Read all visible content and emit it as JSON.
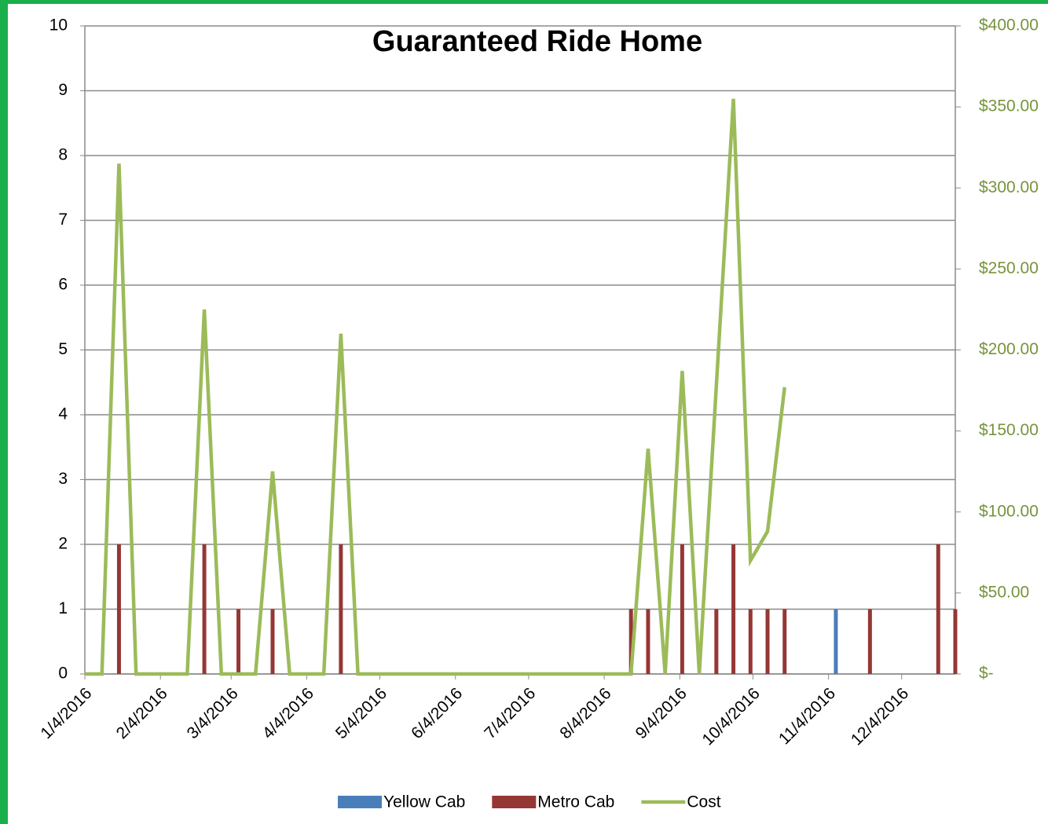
{
  "chart_data": {
    "type": "bar-line",
    "title": "Guaranteed Ride Home",
    "x": [
      "1/4/2016",
      "1/11/2016",
      "1/18/2016",
      "1/25/2016",
      "2/1/2016",
      "2/8/2016",
      "2/15/2016",
      "2/22/2016",
      "2/29/2016",
      "3/7/2016",
      "3/14/2016",
      "3/21/2016",
      "3/28/2016",
      "4/4/2016",
      "4/11/2016",
      "4/18/2016",
      "4/25/2016",
      "5/2/2016",
      "5/9/2016",
      "5/16/2016",
      "5/23/2016",
      "5/30/2016",
      "6/6/2016",
      "6/13/2016",
      "6/20/2016",
      "6/27/2016",
      "7/4/2016",
      "7/11/2016",
      "7/18/2016",
      "7/25/2016",
      "8/1/2016",
      "8/8/2016",
      "8/15/2016",
      "8/22/2016",
      "8/29/2016",
      "9/5/2016",
      "9/12/2016",
      "9/19/2016",
      "9/26/2016",
      "10/3/2016",
      "10/10/2016",
      "10/17/2016",
      "10/24/2016",
      "10/31/2016",
      "11/7/2016",
      "11/14/2016",
      "11/21/2016",
      "11/28/2016",
      "12/5/2016",
      "12/12/2016",
      "12/19/2016",
      "12/26/2016"
    ],
    "series": [
      {
        "name": "Yellow Cab",
        "type": "bar",
        "color": "#4a7ebb",
        "values": [
          0,
          0,
          0,
          0,
          0,
          0,
          0,
          0,
          0,
          0,
          0,
          0,
          0,
          0,
          0,
          0,
          0,
          0,
          0,
          0,
          0,
          0,
          0,
          0,
          0,
          0,
          0,
          0,
          0,
          0,
          0,
          0,
          0,
          0,
          0,
          0,
          0,
          0,
          0,
          0,
          0,
          0,
          0,
          0,
          1,
          0,
          0,
          0,
          0,
          0,
          0,
          0
        ]
      },
      {
        "name": "Metro Cab",
        "type": "bar",
        "color": "#953735",
        "values": [
          0,
          0,
          2,
          0,
          0,
          0,
          0,
          2,
          0,
          1,
          0,
          1,
          0,
          0,
          0,
          2,
          0,
          0,
          0,
          0,
          0,
          0,
          0,
          0,
          0,
          0,
          0,
          0,
          0,
          0,
          0,
          0,
          1,
          1,
          0,
          2,
          0,
          1,
          2,
          1,
          1,
          1,
          0,
          0,
          0,
          0,
          1,
          0,
          0,
          0,
          2,
          1
        ]
      },
      {
        "name": "Cost",
        "type": "line",
        "axis": "y2",
        "color": "#9bbb59",
        "values": [
          0,
          0,
          315,
          0,
          0,
          0,
          0,
          225,
          0,
          0,
          0,
          125,
          0,
          0,
          0,
          210,
          0,
          0,
          0,
          0,
          0,
          0,
          0,
          0,
          0,
          0,
          0,
          0,
          0,
          0,
          0,
          0,
          0,
          139,
          0,
          187,
          0,
          178,
          355,
          70,
          88,
          177,
          null,
          null,
          null,
          null,
          null,
          null,
          null,
          null,
          null,
          null
        ]
      }
    ],
    "xlim": [
      "1/4/2016",
      "12/26/2016"
    ],
    "xticks": [
      "1/4/2016",
      "2/4/2016",
      "3/4/2016",
      "4/4/2016",
      "5/4/2016",
      "6/4/2016",
      "7/4/2016",
      "8/4/2016",
      "9/4/2016",
      "10/4/2016",
      "11/4/2016",
      "12/4/2016"
    ],
    "ylim": [
      0,
      10
    ],
    "yticks": [
      0,
      1,
      2,
      3,
      4,
      5,
      6,
      7,
      8,
      9,
      10
    ],
    "y2lim": [
      0,
      400
    ],
    "y2ticks": [
      {
        "value": 0,
        "label": "$-"
      },
      {
        "value": 50,
        "label": "$50.00"
      },
      {
        "value": 100,
        "label": "$100.00"
      },
      {
        "value": 150,
        "label": "$150.00"
      },
      {
        "value": 200,
        "label": "$200.00"
      },
      {
        "value": 250,
        "label": "$250.00"
      },
      {
        "value": 300,
        "label": "$300.00"
      },
      {
        "value": 350,
        "label": "$350.00"
      },
      {
        "value": 400,
        "label": "$400.00"
      }
    ],
    "grid": true,
    "legend": "bottom"
  }
}
